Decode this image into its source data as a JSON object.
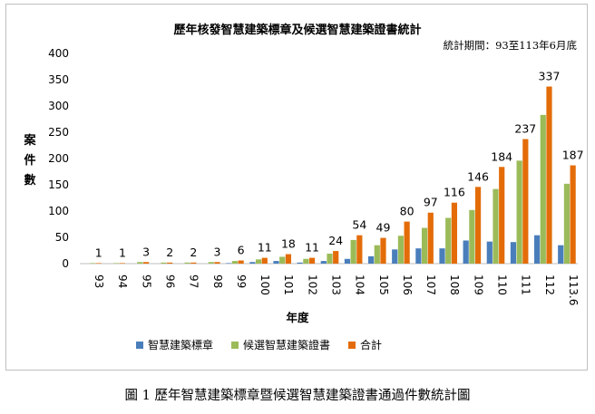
{
  "chart_data": {
    "type": "bar",
    "title": "歷年核發智慧建築標章及候選智慧建築證書統計",
    "subtitle": "統計期間：93至113年6月底",
    "xlabel": "年度",
    "ylabel": "案件數",
    "ylim": [
      0,
      400
    ],
    "yticks": [
      0,
      50,
      100,
      150,
      200,
      250,
      300,
      350,
      400
    ],
    "categories": [
      "93",
      "94",
      "95",
      "96",
      "97",
      "98",
      "99",
      "100",
      "101",
      "102",
      "103",
      "104",
      "105",
      "106",
      "107",
      "108",
      "109",
      "110",
      "111",
      "112",
      "113.6"
    ],
    "series": [
      {
        "name": "智慧建築標章",
        "color": "#4a7ebb",
        "values": [
          0,
          0,
          0,
          0,
          0,
          0,
          1,
          3,
          5,
          2,
          5,
          9,
          14,
          27,
          29,
          29,
          44,
          42,
          41,
          54,
          35
        ]
      },
      {
        "name": "候選智慧建築證書",
        "color": "#9bbb59",
        "values": [
          1,
          1,
          3,
          2,
          2,
          3,
          5,
          8,
          13,
          9,
          19,
          45,
          35,
          53,
          68,
          87,
          102,
          142,
          196,
          283,
          152
        ]
      },
      {
        "name": "合計",
        "color": "#e36c09",
        "values": [
          1,
          1,
          3,
          2,
          2,
          3,
          6,
          11,
          18,
          11,
          24,
          54,
          49,
          80,
          97,
          116,
          146,
          184,
          237,
          337,
          187
        ]
      }
    ],
    "legend_position": "bottom",
    "grid": false
  },
  "caption": "圖 1 歷年智慧建築標章暨候選智慧建築證書通過件數統計圖"
}
